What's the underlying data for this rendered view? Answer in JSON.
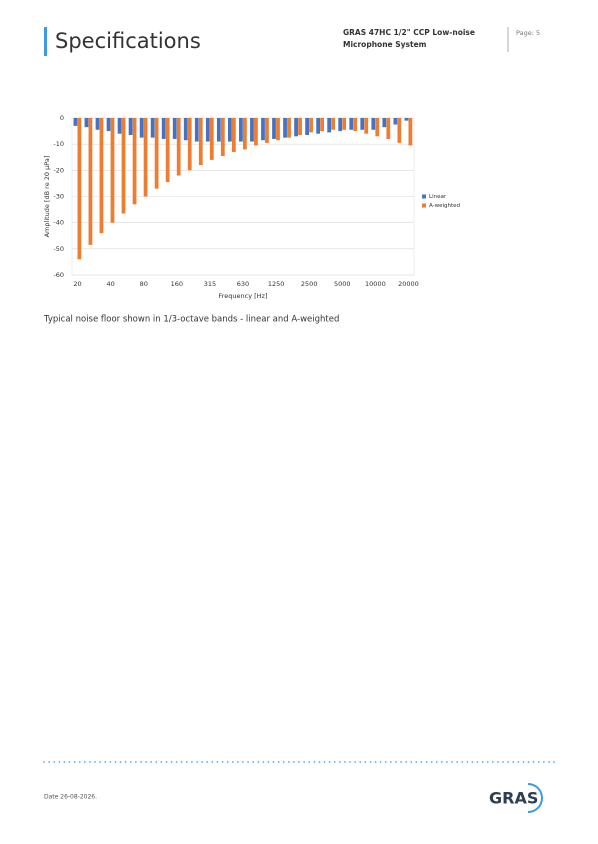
{
  "header": {
    "title": "Specifications",
    "product": [
      "GRAS 47HC 1/2\" CCP Low-noise",
      "Microphone System"
    ],
    "page": "Page: 5"
  },
  "chart_data": {
    "type": "bar",
    "categories": [
      "20",
      null,
      null,
      "40",
      null,
      null,
      "80",
      null,
      null,
      "160",
      null,
      null,
      "315",
      null,
      null,
      "630",
      null,
      null,
      "1250",
      null,
      null,
      "2500",
      null,
      null,
      "5000",
      null,
      null,
      "10000",
      null,
      null,
      "20000"
    ],
    "series": [
      {
        "name": "Linear",
        "color": "#4472c4",
        "values": [
          -3,
          -3.5,
          -4.5,
          -5,
          -6,
          -6.5,
          -7.5,
          -7.5,
          -8,
          -8,
          -8.5,
          -9,
          -9,
          -9,
          -9,
          -9,
          -9,
          -8.5,
          -8,
          -7.5,
          -7,
          -6.5,
          -6,
          -5.5,
          -5,
          -4.5,
          -4.5,
          -4.5,
          -3.5,
          -2.5,
          -1
        ]
      },
      {
        "name": "A-weighted",
        "color": "#ed7d31",
        "values": [
          -54,
          -48.5,
          -44,
          -40,
          -36.5,
          -33,
          -30,
          -27,
          -24.5,
          -22,
          -20,
          -18,
          -16,
          -14.5,
          -13,
          -12,
          -10.5,
          -9.5,
          -8.5,
          -7.5,
          -6.5,
          -5.5,
          -5,
          -4.5,
          -4.5,
          -5,
          -6,
          -7,
          -8,
          -9.5,
          -10.5
        ]
      }
    ],
    "ylim": [
      -60,
      0
    ],
    "yticks": [
      -60,
      -50,
      -40,
      -30,
      -20,
      -10,
      0
    ],
    "xlabel": "Frequency [Hz]",
    "ylabel": "Amplitude [dB re 20 µPa]",
    "grid": true,
    "legend": "right"
  },
  "caption": "Typical noise floor shown in 1/3-octave bands - linear and A-weighted",
  "footer": {
    "date": "Date 26-08-2026.",
    "logo": "GRAS"
  }
}
